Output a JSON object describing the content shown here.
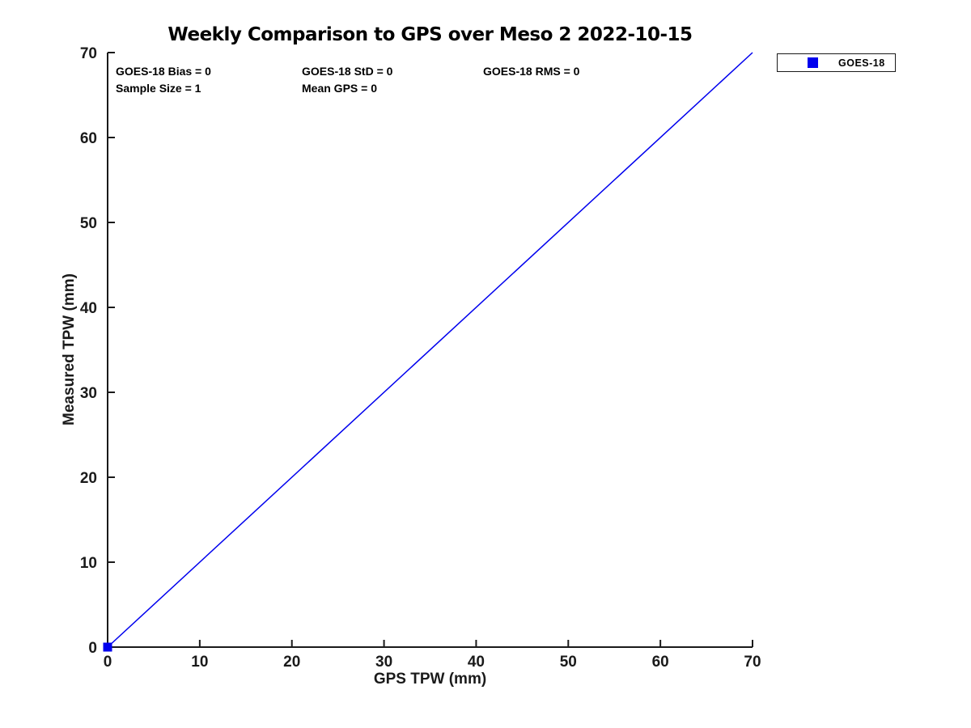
{
  "chart_data": {
    "type": "scatter",
    "title": "Weekly Comparison to GPS over Meso 2 2022-10-15",
    "xlabel": "GPS TPW (mm)",
    "ylabel": "Measured TPW (mm)",
    "xlim": [
      0,
      70
    ],
    "ylim": [
      0,
      70
    ],
    "x_ticks": [
      0,
      10,
      20,
      30,
      40,
      50,
      60,
      70
    ],
    "y_ticks": [
      0,
      10,
      20,
      30,
      40,
      50,
      60,
      70
    ],
    "grid": false,
    "axis_color": "#1a1a1a",
    "accent_color": "#0000ee",
    "legend": {
      "position": "outside-top-right",
      "entries": [
        {
          "label": "GOES-18",
          "marker": "square",
          "color": "#0000ee"
        }
      ]
    },
    "series": [
      {
        "name": "GOES-18 samples",
        "type": "scatter",
        "marker": "square",
        "color": "#0000ee",
        "points": [
          [
            0,
            0
          ]
        ]
      },
      {
        "name": "identity-line",
        "type": "line",
        "color": "#0000ee",
        "points": [
          [
            0,
            0
          ],
          [
            70,
            70
          ]
        ]
      }
    ],
    "annotations": [
      {
        "text": "GOES-18 Bias = 0",
        "row": 0,
        "col": 0
      },
      {
        "text": "GOES-18 StD = 0",
        "row": 0,
        "col": 1
      },
      {
        "text": "GOES-18 RMS = 0",
        "row": 0,
        "col": 2
      },
      {
        "text": "Sample Size = 1",
        "row": 1,
        "col": 0
      },
      {
        "text": "Mean GPS = 0",
        "row": 1,
        "col": 1
      }
    ]
  }
}
